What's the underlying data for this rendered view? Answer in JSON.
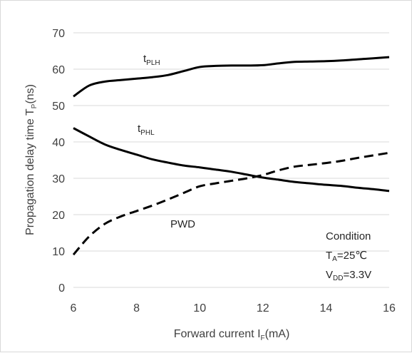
{
  "chart_data": {
    "type": "line",
    "xlabel": {
      "main": "Forward current I",
      "sub": "F",
      "suffix": "(mA)"
    },
    "ylabel": {
      "main": "Propagation delay time T",
      "sub": "P",
      "suffix": "(ns)"
    },
    "xlim": [
      6,
      16
    ],
    "ylim": [
      0,
      70
    ],
    "x_ticks": [
      6,
      8,
      10,
      12,
      14,
      16
    ],
    "y_ticks": [
      0,
      10,
      20,
      30,
      40,
      50,
      60,
      70
    ],
    "x_tick_labels": [
      "6",
      "8",
      "10",
      "12",
      "14",
      "16"
    ],
    "y_tick_labels": [
      "0",
      "10",
      "20",
      "30",
      "40",
      "50",
      "60",
      "70"
    ],
    "grid": "horizontal",
    "series": [
      {
        "name": "tPLH",
        "label": {
          "main": "t",
          "sub": "PLH"
        },
        "style": "solid",
        "color": "#000000",
        "x": [
          6,
          6.5,
          7,
          7.5,
          8,
          8.5,
          9,
          9.5,
          10,
          10.5,
          11,
          11.5,
          12,
          12.5,
          13,
          13.5,
          14,
          14.5,
          15,
          15.5,
          16
        ],
        "y": [
          52.5,
          55.5,
          56.6,
          57.0,
          57.4,
          57.8,
          58.4,
          59.5,
          60.6,
          60.9,
          61.0,
          61.0,
          61.1,
          61.6,
          62.0,
          62.1,
          62.2,
          62.4,
          62.7,
          63.0,
          63.3
        ]
      },
      {
        "name": "tPHL",
        "label": {
          "main": "t",
          "sub": "PHL"
        },
        "style": "solid",
        "color": "#000000",
        "x": [
          6,
          6.5,
          7,
          7.5,
          8,
          8.5,
          9,
          9.5,
          10,
          10.5,
          11,
          11.5,
          12,
          12.5,
          13,
          13.5,
          14,
          14.5,
          15,
          15.5,
          16
        ],
        "y": [
          43.8,
          41.5,
          39.3,
          37.8,
          36.5,
          35.2,
          34.3,
          33.5,
          33.0,
          32.4,
          31.8,
          31.0,
          30.2,
          29.6,
          29.0,
          28.6,
          28.2,
          27.9,
          27.4,
          27.0,
          26.5
        ]
      },
      {
        "name": "PWD",
        "label": {
          "main": "PWD",
          "sub": ""
        },
        "style": "dashed",
        "color": "#000000",
        "x": [
          6,
          6.5,
          7,
          7.5,
          8,
          8.5,
          9,
          9.5,
          10,
          10.5,
          11,
          11.5,
          12,
          12.5,
          13,
          13.5,
          14,
          14.5,
          15,
          15.5,
          16
        ],
        "y": [
          9.0,
          14.0,
          17.5,
          19.5,
          21.0,
          22.5,
          24.2,
          26.0,
          27.8,
          28.6,
          29.3,
          30.0,
          30.9,
          32.2,
          33.2,
          33.7,
          34.2,
          34.8,
          35.6,
          36.3,
          37.0
        ]
      }
    ],
    "annotations": [
      {
        "main": "Condition",
        "sub": "",
        "suffix": ""
      },
      {
        "main": "T",
        "sub": "A",
        "suffix": "=25℃"
      },
      {
        "main": "V",
        "sub": "DD",
        "suffix": "=3.3V"
      }
    ]
  }
}
